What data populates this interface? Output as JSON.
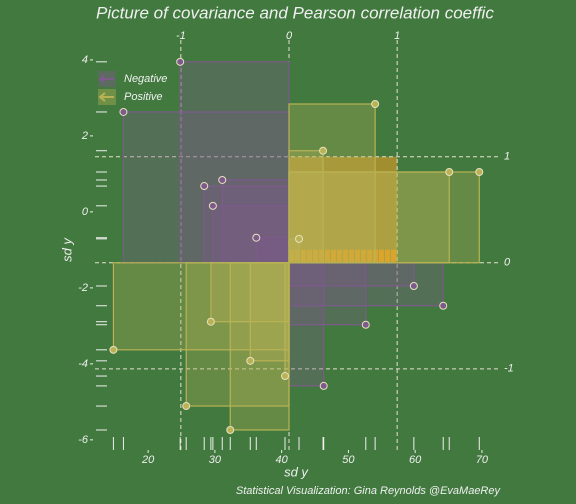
{
  "chart_data": {
    "type": "scatter",
    "title": "Picture of covariance and Pearson correlation coeffic",
    "xlabel": "sd y",
    "ylabel": "sd y",
    "caption": "Statistical Visualization: Gina Reynolds @EvaMaeRey",
    "xlim": [
      6.5,
      75.4
    ],
    "ylim": [
      -6.53,
      4.84
    ],
    "xticks": [
      20,
      30,
      40,
      50,
      60,
      70
    ],
    "yticks": [
      4,
      2,
      0,
      -2,
      -4,
      -6
    ],
    "x2ticks": [
      {
        "value": 24.9,
        "label": "-1"
      },
      {
        "value": 41.1,
        "label": "0"
      },
      {
        "value": 57.3,
        "label": "1"
      }
    ],
    "y2ticks": [
      {
        "value": 1.45,
        "label": "1"
      },
      {
        "value": -1.34,
        "label": "0"
      },
      {
        "value": -4.13,
        "label": "-1"
      }
    ],
    "legend": "top-left",
    "series": [
      {
        "name": "Negative",
        "color": "#7d5a8c",
        "x": [
          24.8,
          16.3,
          28.4,
          29.7,
          31.1,
          36.2,
          46.3,
          52.6,
          59.8,
          64.2
        ],
        "values": [
          3.95,
          2.63,
          0.68,
          0.16,
          0.84,
          -0.68,
          -4.58,
          -2.97,
          -1.95,
          -2.47
        ]
      },
      {
        "name": "Positive",
        "color": "#b9b355",
        "x": [
          14.8,
          25.7,
          32.3,
          35.3,
          40.5,
          29.4,
          42.6,
          46.2,
          54.0,
          65.1,
          69.6
        ],
        "values": [
          -3.63,
          -5.11,
          -5.74,
          -3.92,
          -4.32,
          -2.89,
          -0.71,
          1.61,
          2.84,
          1.05,
          1.05
        ]
      }
    ]
  }
}
